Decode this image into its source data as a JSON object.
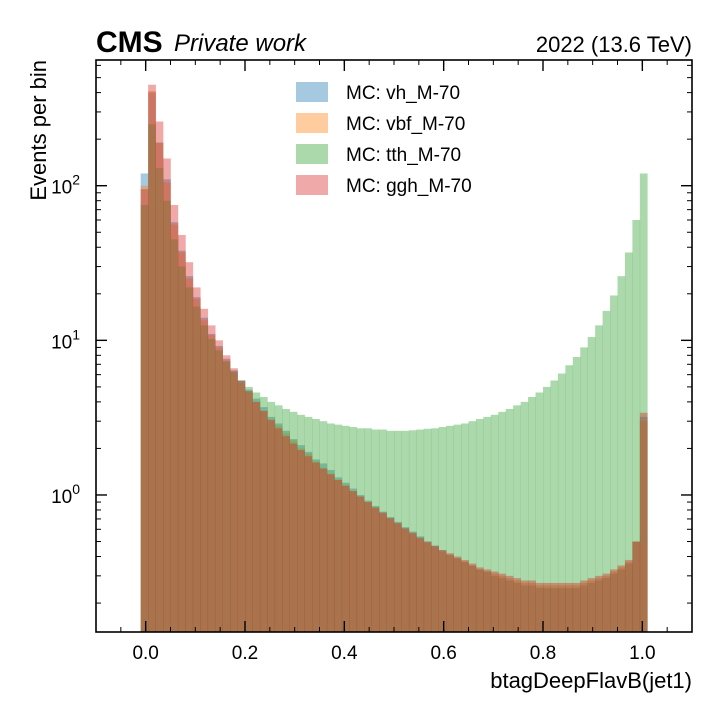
{
  "header": {
    "experiment": "CMS",
    "tag": "Private work",
    "lumi": "2022 (13.6 TeV)"
  },
  "chart_data": {
    "type": "histogram",
    "xlabel": "btagDeepFlavB(jet1)",
    "ylabel": "Events per bin",
    "xlim": [
      -0.1,
      1.1
    ],
    "ylim": [
      0.13,
      650
    ],
    "y_scale": "log",
    "x_ticks": [
      0.0,
      0.2,
      0.4,
      0.6,
      0.8,
      1.0
    ],
    "x_tick_labels": [
      "0.0",
      "0.2",
      "0.4",
      "0.6",
      "0.8",
      "1.0"
    ],
    "y_ticks": [
      1,
      10,
      100
    ],
    "y_tick_label_bases": [
      "10",
      "10",
      "10"
    ],
    "y_tick_label_exps": [
      "0",
      "1",
      "2"
    ],
    "bin_edges": [
      -0.01,
      1.01
    ],
    "n_bins": 68,
    "legend_placement": "top-center",
    "series": [
      {
        "name": "MC: vh_M-70",
        "color": "#1f77b4",
        "values": [
          120,
          400,
          190,
          110,
          58,
          38,
          26,
          19,
          14,
          11,
          9.2,
          7.6,
          6.4,
          5.5,
          4.8,
          4.2,
          3.7,
          3.2,
          2.9,
          2.6,
          2.3,
          2.1,
          1.9,
          1.7,
          1.6,
          1.45,
          1.3,
          1.2,
          1.1,
          1.0,
          0.92,
          0.85,
          0.78,
          0.72,
          0.67,
          0.62,
          0.58,
          0.54,
          0.5,
          0.47,
          0.44,
          0.41,
          0.39,
          0.37,
          0.35,
          0.33,
          0.32,
          0.3,
          0.29,
          0.28,
          0.27,
          0.26,
          0.26,
          0.25,
          0.25,
          0.25,
          0.25,
          0.25,
          0.25,
          0.26,
          0.27,
          0.28,
          0.29,
          0.31,
          0.33,
          0.36,
          0.5,
          3.2
        ]
      },
      {
        "name": "MC: vbf_M-70",
        "color": "#ff7f0e",
        "values": [
          100,
          410,
          190,
          105,
          56,
          37,
          25,
          18.5,
          13.5,
          10.8,
          9.0,
          7.4,
          6.2,
          5.3,
          4.6,
          4.0,
          3.5,
          3.1,
          2.8,
          2.5,
          2.25,
          2.0,
          1.85,
          1.65,
          1.5,
          1.38,
          1.26,
          1.15,
          1.06,
          0.97,
          0.9,
          0.83,
          0.76,
          0.7,
          0.65,
          0.6,
          0.56,
          0.52,
          0.49,
          0.46,
          0.43,
          0.41,
          0.39,
          0.37,
          0.35,
          0.33,
          0.32,
          0.31,
          0.3,
          0.29,
          0.28,
          0.27,
          0.27,
          0.26,
          0.26,
          0.26,
          0.26,
          0.26,
          0.26,
          0.27,
          0.28,
          0.29,
          0.3,
          0.32,
          0.34,
          0.37,
          0.5,
          3.0
        ]
      },
      {
        "name": "MC: tth_M-70",
        "color": "#2ca02c",
        "values": [
          75,
          250,
          130,
          80,
          45,
          30,
          22,
          16.5,
          12.5,
          10.2,
          8.6,
          7.3,
          6.3,
          5.5,
          5.0,
          4.6,
          4.3,
          4.0,
          3.8,
          3.6,
          3.45,
          3.3,
          3.2,
          3.1,
          3.0,
          2.9,
          2.85,
          2.8,
          2.75,
          2.7,
          2.7,
          2.65,
          2.65,
          2.6,
          2.6,
          2.6,
          2.62,
          2.65,
          2.68,
          2.7,
          2.75,
          2.8,
          2.85,
          2.9,
          3.0,
          3.1,
          3.2,
          3.3,
          3.45,
          3.6,
          3.8,
          4.0,
          4.3,
          4.6,
          5.0,
          5.5,
          6.1,
          6.9,
          7.8,
          9.0,
          10.5,
          12.5,
          15.5,
          19.5,
          26,
          37,
          60,
          120
        ]
      },
      {
        "name": "MC: ggh_M-70",
        "color": "#d62728",
        "values": [
          95,
          450,
          260,
          150,
          75,
          48,
          32,
          22,
          16,
          12.5,
          10,
          8.0,
          6.6,
          5.5,
          4.7,
          4.0,
          3.5,
          3.05,
          2.7,
          2.4,
          2.15,
          1.95,
          1.78,
          1.62,
          1.48,
          1.36,
          1.25,
          1.15,
          1.06,
          0.98,
          0.9,
          0.83,
          0.77,
          0.71,
          0.66,
          0.61,
          0.57,
          0.53,
          0.5,
          0.47,
          0.44,
          0.42,
          0.4,
          0.38,
          0.36,
          0.34,
          0.33,
          0.32,
          0.31,
          0.3,
          0.29,
          0.28,
          0.28,
          0.27,
          0.27,
          0.27,
          0.27,
          0.27,
          0.27,
          0.28,
          0.29,
          0.3,
          0.31,
          0.33,
          0.35,
          0.38,
          0.5,
          3.4
        ]
      }
    ]
  }
}
